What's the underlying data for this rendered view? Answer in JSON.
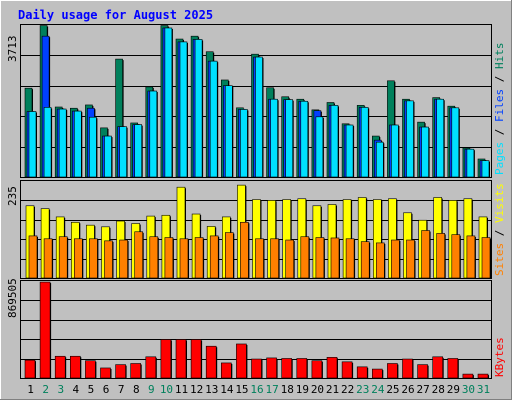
{
  "title": "Daily usage for August 2025",
  "colors": {
    "background": "#c0c0c0",
    "title": "#0000ff",
    "hits": "#00805c",
    "files": "#0040ff",
    "pages": "#00e0ff",
    "visits": "#ffff00",
    "sites": "#ff8000",
    "kbytes": "#ff0000",
    "weekday_label": "#000000",
    "weekend_label": "#00805c"
  },
  "chart_data": [
    {
      "type": "bar",
      "panel": "hits_files_pages",
      "max_label": "3713",
      "ymax": 3713,
      "categories": [
        "1",
        "2",
        "3",
        "4",
        "5",
        "6",
        "7",
        "8",
        "9",
        "10",
        "11",
        "12",
        "13",
        "14",
        "15",
        "16",
        "17",
        "18",
        "19",
        "20",
        "21",
        "22",
        "23",
        "24",
        "25",
        "26",
        "27",
        "28",
        "29",
        "30",
        "31"
      ],
      "weekend_days": [
        "2",
        "3",
        "9",
        "10",
        "16",
        "17",
        "23",
        "24",
        "30",
        "31"
      ],
      "legend": [
        {
          "text": "Hits",
          "color": "#00805c"
        },
        {
          "text": "Files",
          "color": "#0040ff"
        },
        {
          "text": "Pages",
          "color": "#00e0ff"
        }
      ],
      "series": [
        {
          "name": "Hits",
          "values": [
            2170,
            3700,
            1710,
            1680,
            1760,
            1200,
            2880,
            1320,
            2200,
            3700,
            3370,
            3440,
            3060,
            2370,
            1690,
            3000,
            2180,
            1960,
            1900,
            1640,
            1820,
            1300,
            1750,
            1000,
            2350,
            1900,
            1340,
            1940,
            1730,
            710,
            440
          ]
        },
        {
          "name": "Files",
          "values": [
            1600,
            3440,
            1660,
            1610,
            1680,
            1000,
            1230,
            1280,
            2100,
            3640,
            3300,
            3360,
            2830,
            2230,
            1650,
            2930,
            1900,
            1890,
            1850,
            1620,
            1750,
            1270,
            1700,
            900,
            1270,
            1860,
            1220,
            1900,
            1690,
            680,
            400
          ]
        },
        {
          "name": "Pages",
          "values": [
            1600,
            1700,
            1660,
            1610,
            1460,
            1000,
            1230,
            1280,
            2100,
            3640,
            3300,
            3360,
            2830,
            2230,
            1650,
            2930,
            1900,
            1890,
            1850,
            1470,
            1750,
            1270,
            1700,
            850,
            1270,
            1860,
            1220,
            1900,
            1690,
            680,
            400
          ]
        }
      ]
    },
    {
      "type": "bar",
      "panel": "visits_sites",
      "max_label": "235",
      "ymax": 235,
      "categories": [
        "1",
        "2",
        "3",
        "4",
        "5",
        "6",
        "7",
        "8",
        "9",
        "10",
        "11",
        "12",
        "13",
        "14",
        "15",
        "16",
        "17",
        "18",
        "19",
        "20",
        "21",
        "22",
        "23",
        "24",
        "25",
        "26",
        "27",
        "28",
        "29",
        "30",
        "31"
      ],
      "legend": [
        {
          "text": "Visits",
          "color": "#ffff00"
        },
        {
          "text": "Sites",
          "color": "#ff8000"
        }
      ],
      "series": [
        {
          "name": "Visits",
          "values": [
            175,
            168,
            148,
            135,
            128,
            124,
            138,
            132,
            150,
            152,
            220,
            155,
            125,
            148,
            225,
            190,
            188,
            190,
            192,
            175,
            178,
            190,
            195,
            190,
            192,
            158,
            140,
            195,
            188,
            192,
            148
          ]
        },
        {
          "name": "Sites",
          "values": [
            102,
            95,
            100,
            95,
            95,
            90,
            92,
            112,
            100,
            98,
            95,
            98,
            102,
            110,
            135,
            95,
            95,
            92,
            100,
            98,
            97,
            95,
            88,
            85,
            92,
            92,
            115,
            108,
            105,
            102,
            98
          ]
        }
      ]
    },
    {
      "type": "bar",
      "panel": "kbytes",
      "max_label": "869505",
      "ymax": 869505,
      "categories": [
        "1",
        "2",
        "3",
        "4",
        "5",
        "6",
        "7",
        "8",
        "9",
        "10",
        "11",
        "12",
        "13",
        "14",
        "15",
        "16",
        "17",
        "18",
        "19",
        "20",
        "21",
        "22",
        "23",
        "24",
        "25",
        "26",
        "27",
        "28",
        "29",
        "30",
        "31"
      ],
      "legend": [
        {
          "text": "KBytes",
          "color": "#ff0000"
        }
      ],
      "series": [
        {
          "name": "KBytes",
          "values": [
            160000,
            860000,
            195000,
            195000,
            155000,
            90000,
            120000,
            130000,
            190000,
            345000,
            345000,
            345000,
            285000,
            135000,
            305000,
            170000,
            180000,
            175000,
            175000,
            155000,
            185000,
            145000,
            100000,
            80000,
            130000,
            170000,
            120000,
            190000,
            175000,
            35000,
            35000
          ]
        }
      ]
    }
  ]
}
